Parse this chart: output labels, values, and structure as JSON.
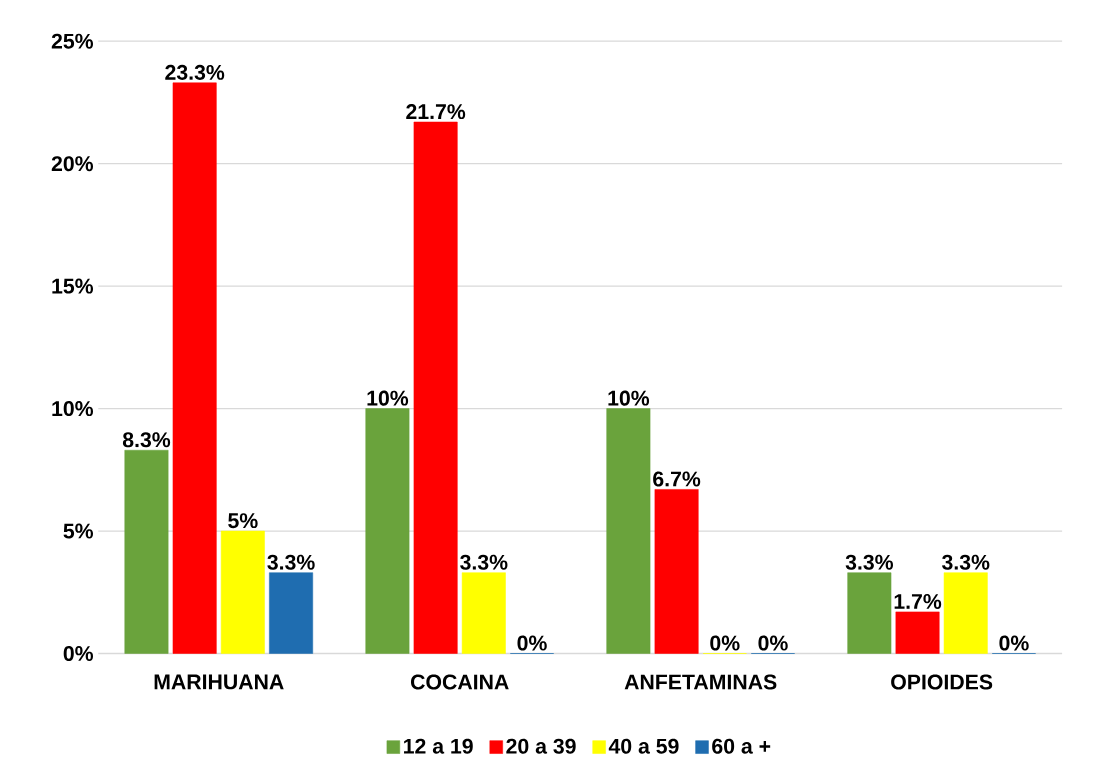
{
  "chart_data": {
    "type": "bar",
    "categories": [
      "MARIHUANA",
      "COCAINA",
      "ANFETAMINAS",
      "OPIOIDES"
    ],
    "series": [
      {
        "name": "12 a 19",
        "color": "#6aa33c",
        "values": [
          8.3,
          10,
          10,
          3.3
        ],
        "value_labels": [
          "8.3%",
          "10%",
          "10%",
          "3.3%"
        ]
      },
      {
        "name": "20 a 39",
        "color": "#ff0000",
        "values": [
          23.3,
          21.7,
          6.7,
          1.7
        ],
        "value_labels": [
          "23.3%",
          "21.7%",
          "6.7%",
          "1.7%"
        ]
      },
      {
        "name": "40 a 59",
        "color": "#ffff00",
        "values": [
          5,
          3.3,
          0,
          3.3
        ],
        "value_labels": [
          "5%",
          "3.3%",
          "0%",
          "3.3%"
        ]
      },
      {
        "name": "60 a +",
        "color": "#1f6db0",
        "values": [
          3.3,
          0,
          0,
          0
        ],
        "value_labels": [
          "3.3%",
          "0%",
          "0%",
          "0%"
        ]
      }
    ],
    "ylim": [
      0,
      25
    ],
    "yticks": [
      {
        "value": 0,
        "label": "0%"
      },
      {
        "value": 5,
        "label": "5%"
      },
      {
        "value": 10,
        "label": "10%"
      },
      {
        "value": 15,
        "label": "15%"
      },
      {
        "value": 20,
        "label": "20%"
      },
      {
        "value": 25,
        "label": "25%"
      }
    ],
    "grid": "y",
    "legend": "bottom"
  }
}
